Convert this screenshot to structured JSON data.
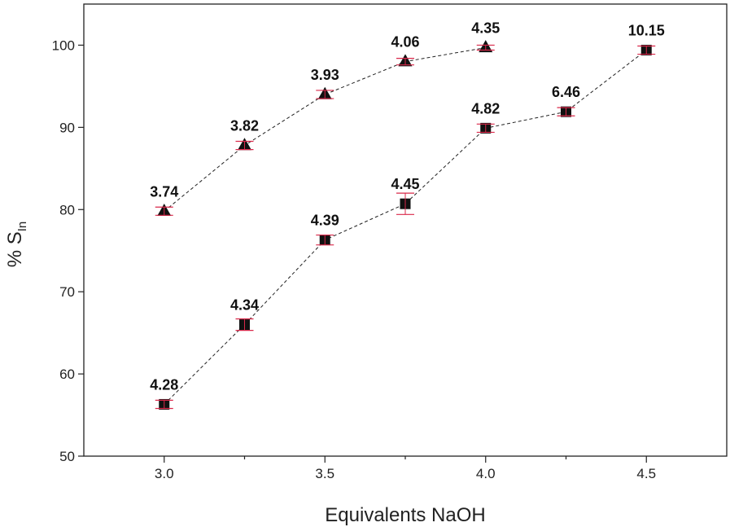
{
  "chart_data": {
    "type": "scatter",
    "xlabel": "Equivalents NaOH",
    "ylabel": {
      "main": "% S",
      "sub": "In"
    },
    "xlim": [
      2.75,
      4.75
    ],
    "ylim": [
      50,
      105
    ],
    "xticks": [
      3.0,
      3.5,
      4.0,
      4.5
    ],
    "xtick_labels": [
      "3.0",
      "3.5",
      "4.0",
      "4.5"
    ],
    "xminor": [
      3.25,
      3.75,
      4.25
    ],
    "yticks": [
      50,
      60,
      70,
      80,
      90,
      100
    ],
    "ytick_labels": [
      "50",
      "60",
      "70",
      "80",
      "90",
      "100"
    ],
    "grid": false,
    "series": [
      {
        "marker": "triangle",
        "x": [
          3.0,
          3.25,
          3.5,
          3.75,
          4.0
        ],
        "y": [
          79.8,
          87.8,
          94.0,
          98.0,
          99.7
        ],
        "err": [
          0.5,
          0.5,
          0.5,
          0.4,
          0.3
        ],
        "labels": [
          "3.74",
          "3.82",
          "3.93",
          "4.06",
          "4.35"
        ]
      },
      {
        "marker": "square",
        "x": [
          3.0,
          3.25,
          3.5,
          3.75,
          4.0,
          4.25,
          4.5
        ],
        "y": [
          56.3,
          66.0,
          76.3,
          80.7,
          89.9,
          91.9,
          99.4
        ],
        "err": [
          0.5,
          0.7,
          0.6,
          1.3,
          0.5,
          0.5,
          0.5
        ],
        "labels": [
          "4.28",
          "4.34",
          "4.39",
          "4.45",
          "4.82",
          "6.46",
          "10.15"
        ]
      }
    ]
  },
  "colors": {
    "marker": "#111111",
    "errorbar": "#d9284a",
    "line": "#222222",
    "axis": "#222222"
  }
}
